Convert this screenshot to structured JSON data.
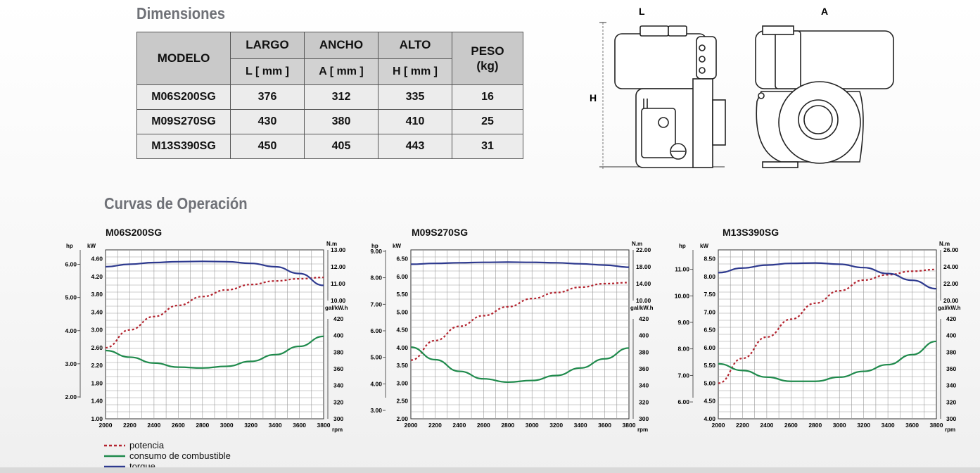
{
  "section_dimensions": "Dimensiones",
  "section_curves": "Curvas de Operación",
  "table": {
    "h_modelo": "MODELO",
    "h_largo": "LARGO",
    "h_ancho": "ANCHO",
    "h_alto": "ALTO",
    "h_peso": "PESO",
    "h_peso_unit": "(kg)",
    "u_largo": "L [ mm ]",
    "u_ancho": "A [ mm ]",
    "u_alto": "H [ mm ]",
    "rows": [
      {
        "modelo": "M06S200SG",
        "largo": "376",
        "ancho": "312",
        "alto": "335",
        "peso": "16"
      },
      {
        "modelo": "M09S270SG",
        "largo": "430",
        "ancho": "380",
        "alto": "410",
        "peso": "25"
      },
      {
        "modelo": "M13S390SG",
        "largo": "450",
        "ancho": "405",
        "alto": "443",
        "peso": "31"
      }
    ]
  },
  "drawing": {
    "label_L": "L",
    "label_A": "A",
    "label_H": "H"
  },
  "legend": {
    "potencia": "potencia",
    "consumo": "consumo de combustible",
    "torque": "torque"
  },
  "colors": {
    "potencia": "#b3232e",
    "consumo": "#1f8a4c",
    "torque": "#2e3a8f"
  },
  "chart_data": [
    {
      "type": "line",
      "title": "M06S200SG",
      "x_unit": "rpm",
      "x": [
        2000,
        2200,
        2400,
        2600,
        2800,
        3000,
        3200,
        3400,
        3600,
        3800
      ],
      "hp_label": "hp",
      "kw_label": "kW",
      "nm_label": "N.m",
      "gal_label": "gal/kW.h",
      "hp_ticks": [
        "6.00",
        "5.00",
        "4.00",
        "3.00",
        "2.00"
      ],
      "kw_ticks": [
        "4.60",
        "4.20",
        "3.80",
        "3.40",
        "3.00",
        "2.60",
        "2.20",
        "1.80",
        "1.40",
        "1.00"
      ],
      "nm_ticks": [
        "13.00",
        "12.00",
        "11.00",
        "10.00"
      ],
      "gal_ticks": [
        "420",
        "400",
        "380",
        "360",
        "340",
        "320",
        "300"
      ],
      "kw_range": [
        1.0,
        4.8
      ],
      "nm_range": [
        10.0,
        13.0
      ],
      "gal_range": [
        300,
        420
      ],
      "series": [
        {
          "name": "potencia",
          "axis": "kw",
          "x": [
            2000,
            2200,
            2400,
            2600,
            2800,
            3000,
            3200,
            3400,
            3600,
            3800
          ],
          "values": [
            2.6,
            3.0,
            3.3,
            3.55,
            3.75,
            3.9,
            4.02,
            4.1,
            4.15,
            4.18
          ]
        },
        {
          "name": "torque",
          "axis": "nm",
          "x": [
            2000,
            2200,
            2400,
            2600,
            2800,
            3000,
            3200,
            3400,
            3600,
            3800
          ],
          "values": [
            12.0,
            12.15,
            12.25,
            12.3,
            12.32,
            12.3,
            12.2,
            12.0,
            11.6,
            10.9
          ]
        },
        {
          "name": "consumo de combustible",
          "axis": "gal",
          "x": [
            2000,
            2200,
            2400,
            2600,
            2800,
            3000,
            3200,
            3400,
            3600,
            3800
          ],
          "values": [
            382,
            374,
            367,
            362,
            361,
            363,
            369,
            377,
            387,
            399
          ]
        }
      ]
    },
    {
      "type": "line",
      "title": "M09S270SG",
      "x_unit": "rpm",
      "x": [
        2000,
        2200,
        2400,
        2600,
        2800,
        3000,
        3200,
        3400,
        3600,
        3800
      ],
      "hp_label": "hp",
      "kw_label": "kW",
      "nm_label": "N.m",
      "gal_label": "gal/kW.h",
      "hp_ticks": [
        "9.00",
        "8.00",
        "7.00",
        "6.00",
        "5.00",
        "4.00",
        "3.00"
      ],
      "kw_ticks": [
        "6.50",
        "6.00",
        "5.50",
        "5.00",
        "4.50",
        "4.00",
        "3.50",
        "3.00",
        "2.50",
        "2.00"
      ],
      "nm_ticks": [
        "22.00",
        "18.00",
        "14.00",
        "10.00"
      ],
      "gal_ticks": [
        "420",
        "400",
        "380",
        "360",
        "340",
        "320",
        "300"
      ],
      "kw_range": [
        2.0,
        6.75
      ],
      "nm_range": [
        10.0,
        22.0
      ],
      "gal_range": [
        300,
        420
      ],
      "series": [
        {
          "name": "potencia",
          "axis": "kw",
          "x": [
            2000,
            2200,
            2400,
            2600,
            2800,
            3000,
            3200,
            3400,
            3600,
            3800
          ],
          "values": [
            3.65,
            4.2,
            4.6,
            4.9,
            5.15,
            5.38,
            5.55,
            5.7,
            5.8,
            5.83
          ]
        },
        {
          "name": "torque",
          "axis": "nm",
          "x": [
            2000,
            2200,
            2400,
            2600,
            2800,
            3000,
            3200,
            3400,
            3600,
            3800
          ],
          "values": [
            18.6,
            18.8,
            18.95,
            19.05,
            19.1,
            19.05,
            18.95,
            18.7,
            18.4,
            17.9
          ]
        },
        {
          "name": "consumo de combustible",
          "axis": "gal",
          "x": [
            2000,
            2200,
            2400,
            2600,
            2800,
            3000,
            3200,
            3400,
            3600,
            3800
          ],
          "values": [
            386,
            371,
            357,
            348,
            344,
            346,
            352,
            361,
            372,
            385
          ]
        }
      ]
    },
    {
      "type": "line",
      "title": "M13S390SG",
      "x_unit": "rpm",
      "x": [
        2000,
        2200,
        2400,
        2600,
        2800,
        3000,
        3200,
        3400,
        3600,
        3800
      ],
      "hp_label": "hp",
      "kw_label": "kW",
      "nm_label": "N.m",
      "gal_label": "gal/kW.h",
      "hp_ticks": [
        "11.00",
        "10.00",
        "9.00",
        "8.00",
        "7.00",
        "6.00"
      ],
      "kw_ticks": [
        "8.50",
        "8.00",
        "7.50",
        "7.00",
        "6.50",
        "6.00",
        "5.50",
        "5.00",
        "4.50",
        "4.00"
      ],
      "nm_ticks": [
        "26.00",
        "24.00",
        "22.00",
        "20.00"
      ],
      "gal_ticks": [
        "420",
        "400",
        "380",
        "360",
        "340",
        "320",
        "300"
      ],
      "kw_range": [
        4.0,
        8.75
      ],
      "nm_range": [
        20.0,
        26.0
      ],
      "gal_range": [
        300,
        420
      ],
      "series": [
        {
          "name": "potencia",
          "axis": "kw",
          "x": [
            2000,
            2200,
            2400,
            2600,
            2800,
            3000,
            3200,
            3400,
            3600,
            3800
          ],
          "values": [
            5.0,
            5.7,
            6.3,
            6.8,
            7.25,
            7.6,
            7.9,
            8.05,
            8.15,
            8.2
          ]
        },
        {
          "name": "torque",
          "axis": "nm",
          "x": [
            2000,
            2200,
            2400,
            2600,
            2800,
            3000,
            3200,
            3400,
            3600,
            3800
          ],
          "values": [
            23.3,
            23.85,
            24.2,
            24.4,
            24.45,
            24.3,
            23.9,
            23.2,
            22.4,
            21.4
          ]
        },
        {
          "name": "consumo de combustible",
          "axis": "gal",
          "x": [
            2000,
            2200,
            2400,
            2600,
            2800,
            3000,
            3200,
            3400,
            3600,
            3800
          ],
          "values": [
            366,
            358,
            350,
            345,
            345,
            350,
            357,
            365,
            377,
            393
          ]
        }
      ]
    }
  ]
}
